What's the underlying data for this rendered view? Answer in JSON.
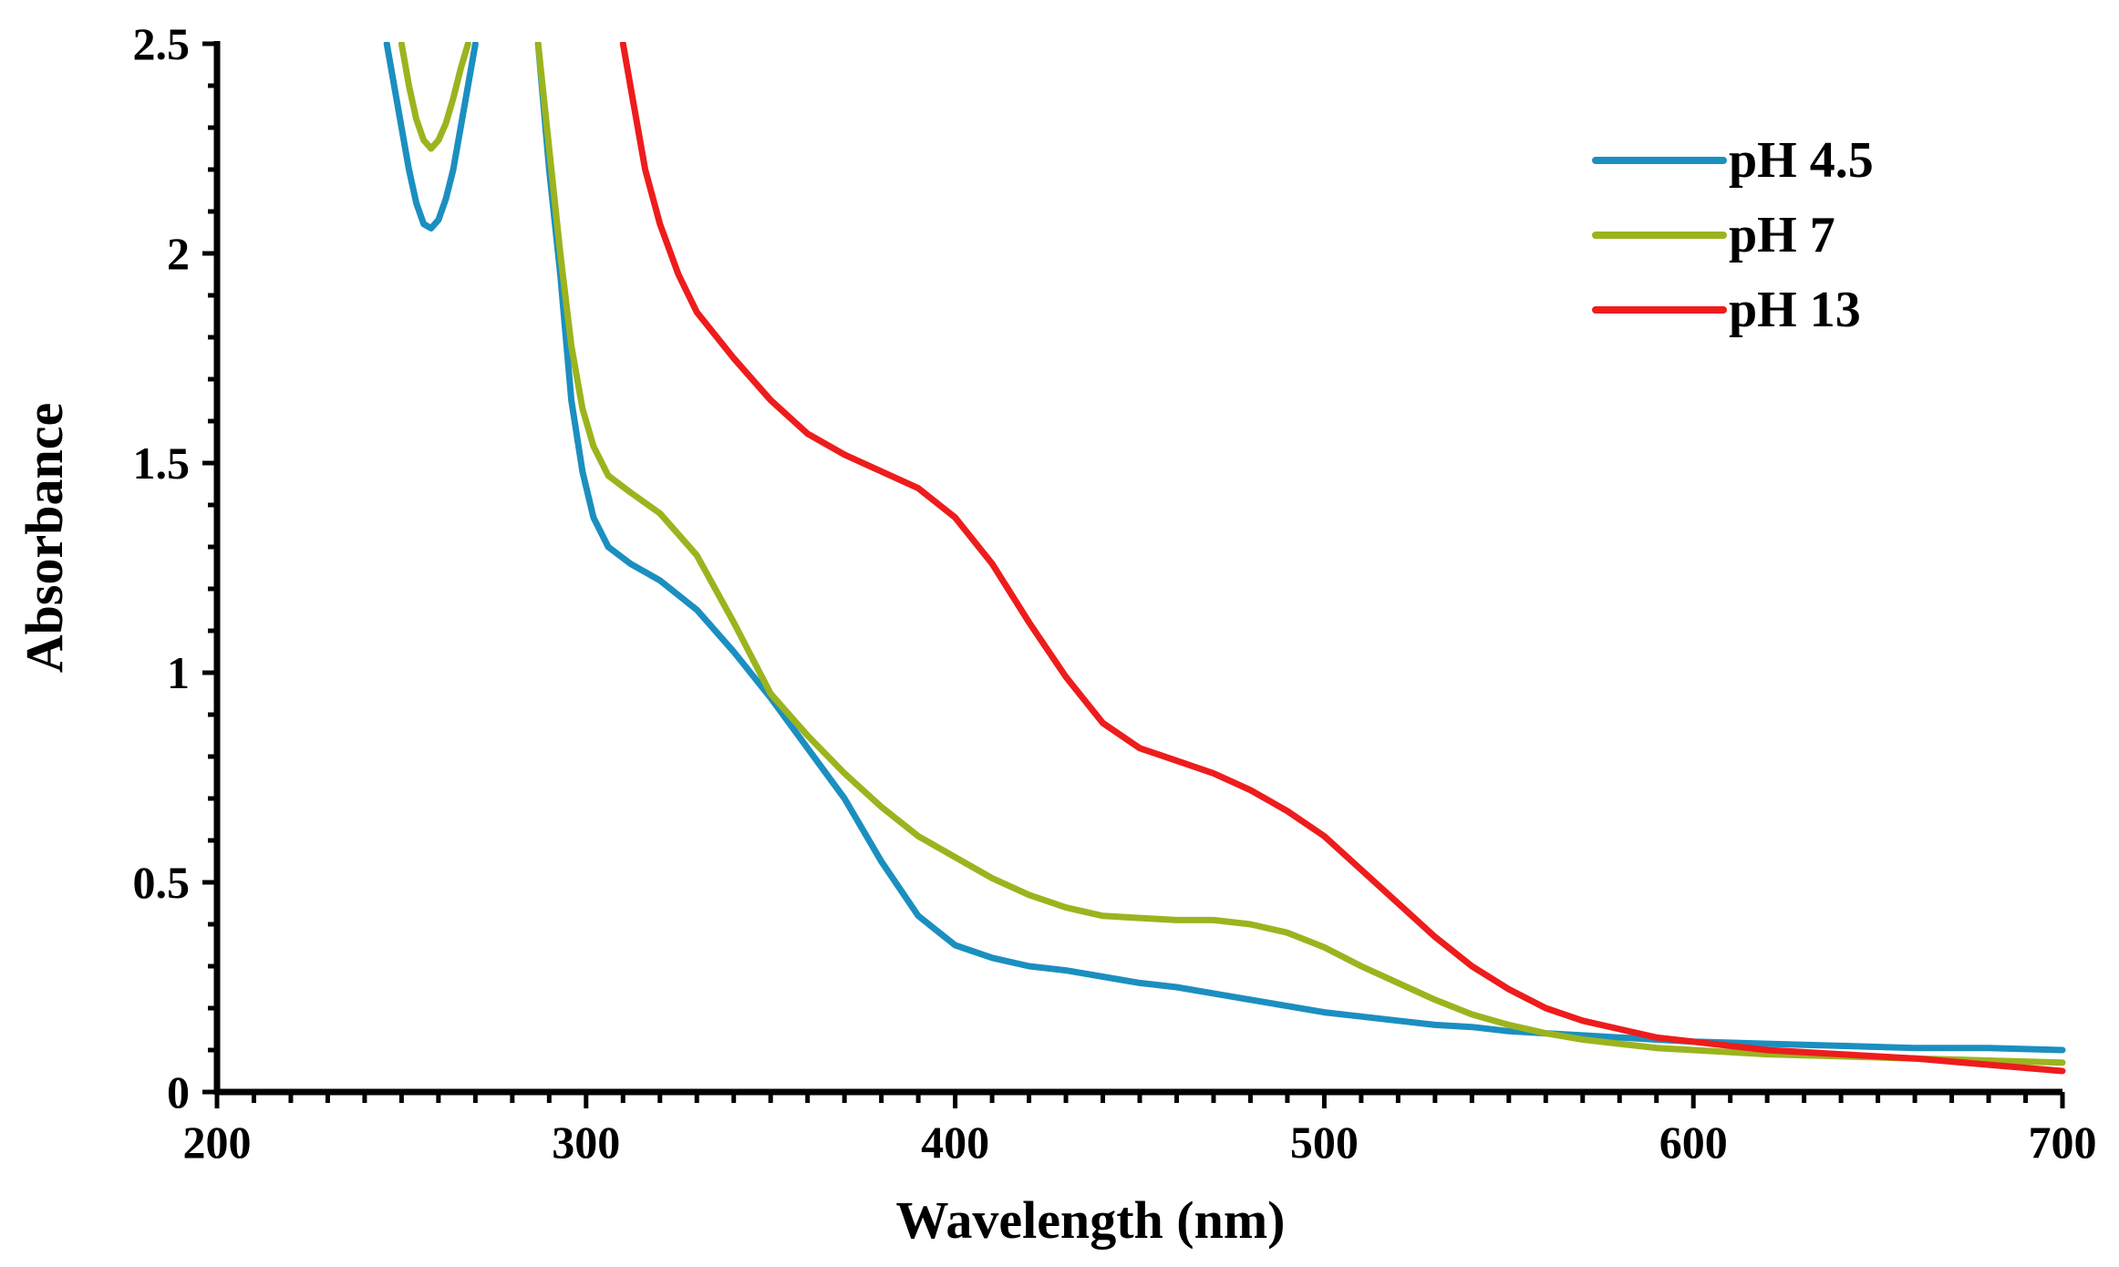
{
  "chart_data": {
    "type": "line",
    "title": "",
    "xlabel": "Wavelength (nm)",
    "ylabel": "Absorbance",
    "xlim": [
      200,
      700
    ],
    "ylim": [
      0,
      2.5
    ],
    "xticks": [
      200,
      300,
      400,
      500,
      600,
      700
    ],
    "xtick_labels": [
      "200",
      "300",
      "400",
      "500",
      "600",
      "700"
    ],
    "yticks": [
      0,
      0.5,
      1,
      1.5,
      2,
      2.5
    ],
    "ytick_labels": [
      "0",
      "0.5",
      "1",
      "1.5",
      "2",
      "2.5"
    ],
    "x_minor_step": 10,
    "y_minor_step": 0.1,
    "grid": false,
    "legend": "top-right",
    "series": [
      {
        "name": "pH 4.5",
        "color": "#1b8fc0",
        "segments": [
          [
            [
              246,
              2.5
            ],
            [
              248,
              2.4
            ],
            [
              250,
              2.3
            ],
            [
              252,
              2.2
            ],
            [
              254,
              2.12
            ],
            [
              256,
              2.07
            ],
            [
              258,
              2.06
            ],
            [
              260,
              2.08
            ],
            [
              262,
              2.13
            ],
            [
              264,
              2.2
            ],
            [
              266,
              2.3
            ],
            [
              268,
              2.4
            ],
            [
              270,
              2.5
            ]
          ],
          [
            [
              287,
              2.5
            ],
            [
              290,
              2.2
            ],
            [
              293,
              1.95
            ],
            [
              296,
              1.65
            ],
            [
              299,
              1.48
            ],
            [
              302,
              1.37
            ],
            [
              306,
              1.3
            ],
            [
              312,
              1.26
            ],
            [
              320,
              1.22
            ],
            [
              330,
              1.15
            ],
            [
              340,
              1.05
            ],
            [
              350,
              0.94
            ],
            [
              360,
              0.82
            ],
            [
              370,
              0.7
            ],
            [
              380,
              0.55
            ],
            [
              390,
              0.42
            ],
            [
              400,
              0.35
            ],
            [
              410,
              0.32
            ],
            [
              420,
              0.3
            ],
            [
              430,
              0.29
            ],
            [
              440,
              0.275
            ],
            [
              450,
              0.26
            ],
            [
              460,
              0.25
            ],
            [
              470,
              0.235
            ],
            [
              480,
              0.22
            ],
            [
              490,
              0.205
            ],
            [
              500,
              0.19
            ],
            [
              510,
              0.18
            ],
            [
              520,
              0.17
            ],
            [
              530,
              0.16
            ],
            [
              540,
              0.155
            ],
            [
              550,
              0.145
            ],
            [
              560,
              0.14
            ],
            [
              570,
              0.135
            ],
            [
              580,
              0.13
            ],
            [
              590,
              0.125
            ],
            [
              600,
              0.12
            ],
            [
              620,
              0.115
            ],
            [
              640,
              0.11
            ],
            [
              660,
              0.105
            ],
            [
              680,
              0.105
            ],
            [
              700,
              0.1
            ]
          ]
        ]
      },
      {
        "name": "pH 7",
        "color": "#9bb41e",
        "segments": [
          [
            [
              250,
              2.5
            ],
            [
              252,
              2.4
            ],
            [
              254,
              2.32
            ],
            [
              256,
              2.27
            ],
            [
              258,
              2.25
            ],
            [
              260,
              2.27
            ],
            [
              262,
              2.31
            ],
            [
              264,
              2.37
            ],
            [
              266,
              2.44
            ],
            [
              268,
              2.5
            ]
          ],
          [
            [
              287,
              2.5
            ],
            [
              290,
              2.25
            ],
            [
              293,
              2.0
            ],
            [
              296,
              1.78
            ],
            [
              299,
              1.63
            ],
            [
              302,
              1.54
            ],
            [
              306,
              1.47
            ],
            [
              312,
              1.43
            ],
            [
              320,
              1.38
            ],
            [
              330,
              1.28
            ],
            [
              340,
              1.12
            ],
            [
              350,
              0.95
            ],
            [
              360,
              0.85
            ],
            [
              370,
              0.76
            ],
            [
              380,
              0.68
            ],
            [
              390,
              0.61
            ],
            [
              400,
              0.56
            ],
            [
              410,
              0.51
            ],
            [
              420,
              0.47
            ],
            [
              430,
              0.44
            ],
            [
              440,
              0.42
            ],
            [
              450,
              0.415
            ],
            [
              460,
              0.41
            ],
            [
              470,
              0.41
            ],
            [
              480,
              0.4
            ],
            [
              490,
              0.38
            ],
            [
              500,
              0.345
            ],
            [
              510,
              0.3
            ],
            [
              520,
              0.26
            ],
            [
              530,
              0.22
            ],
            [
              540,
              0.185
            ],
            [
              550,
              0.16
            ],
            [
              560,
              0.14
            ],
            [
              570,
              0.125
            ],
            [
              580,
              0.115
            ],
            [
              590,
              0.105
            ],
            [
              600,
              0.1
            ],
            [
              620,
              0.09
            ],
            [
              640,
              0.085
            ],
            [
              660,
              0.08
            ],
            [
              680,
              0.075
            ],
            [
              700,
              0.07
            ]
          ]
        ]
      },
      {
        "name": "pH 13",
        "color": "#ee1c1c",
        "segments": [
          [
            [
              310,
              2.5
            ],
            [
              313,
              2.35
            ],
            [
              316,
              2.2
            ],
            [
              320,
              2.07
            ],
            [
              325,
              1.95
            ],
            [
              330,
              1.86
            ],
            [
              340,
              1.75
            ],
            [
              350,
              1.65
            ],
            [
              360,
              1.57
            ],
            [
              370,
              1.52
            ],
            [
              380,
              1.48
            ],
            [
              390,
              1.44
            ],
            [
              400,
              1.37
            ],
            [
              410,
              1.26
            ],
            [
              420,
              1.12
            ],
            [
              430,
              0.99
            ],
            [
              440,
              0.88
            ],
            [
              450,
              0.82
            ],
            [
              460,
              0.79
            ],
            [
              470,
              0.76
            ],
            [
              480,
              0.72
            ],
            [
              490,
              0.67
            ],
            [
              500,
              0.61
            ],
            [
              510,
              0.53
            ],
            [
              520,
              0.45
            ],
            [
              530,
              0.37
            ],
            [
              540,
              0.3
            ],
            [
              550,
              0.245
            ],
            [
              560,
              0.2
            ],
            [
              570,
              0.17
            ],
            [
              580,
              0.15
            ],
            [
              590,
              0.13
            ],
            [
              600,
              0.12
            ],
            [
              620,
              0.1
            ],
            [
              640,
              0.09
            ],
            [
              660,
              0.08
            ],
            [
              680,
              0.065
            ],
            [
              700,
              0.05
            ]
          ]
        ]
      }
    ]
  }
}
